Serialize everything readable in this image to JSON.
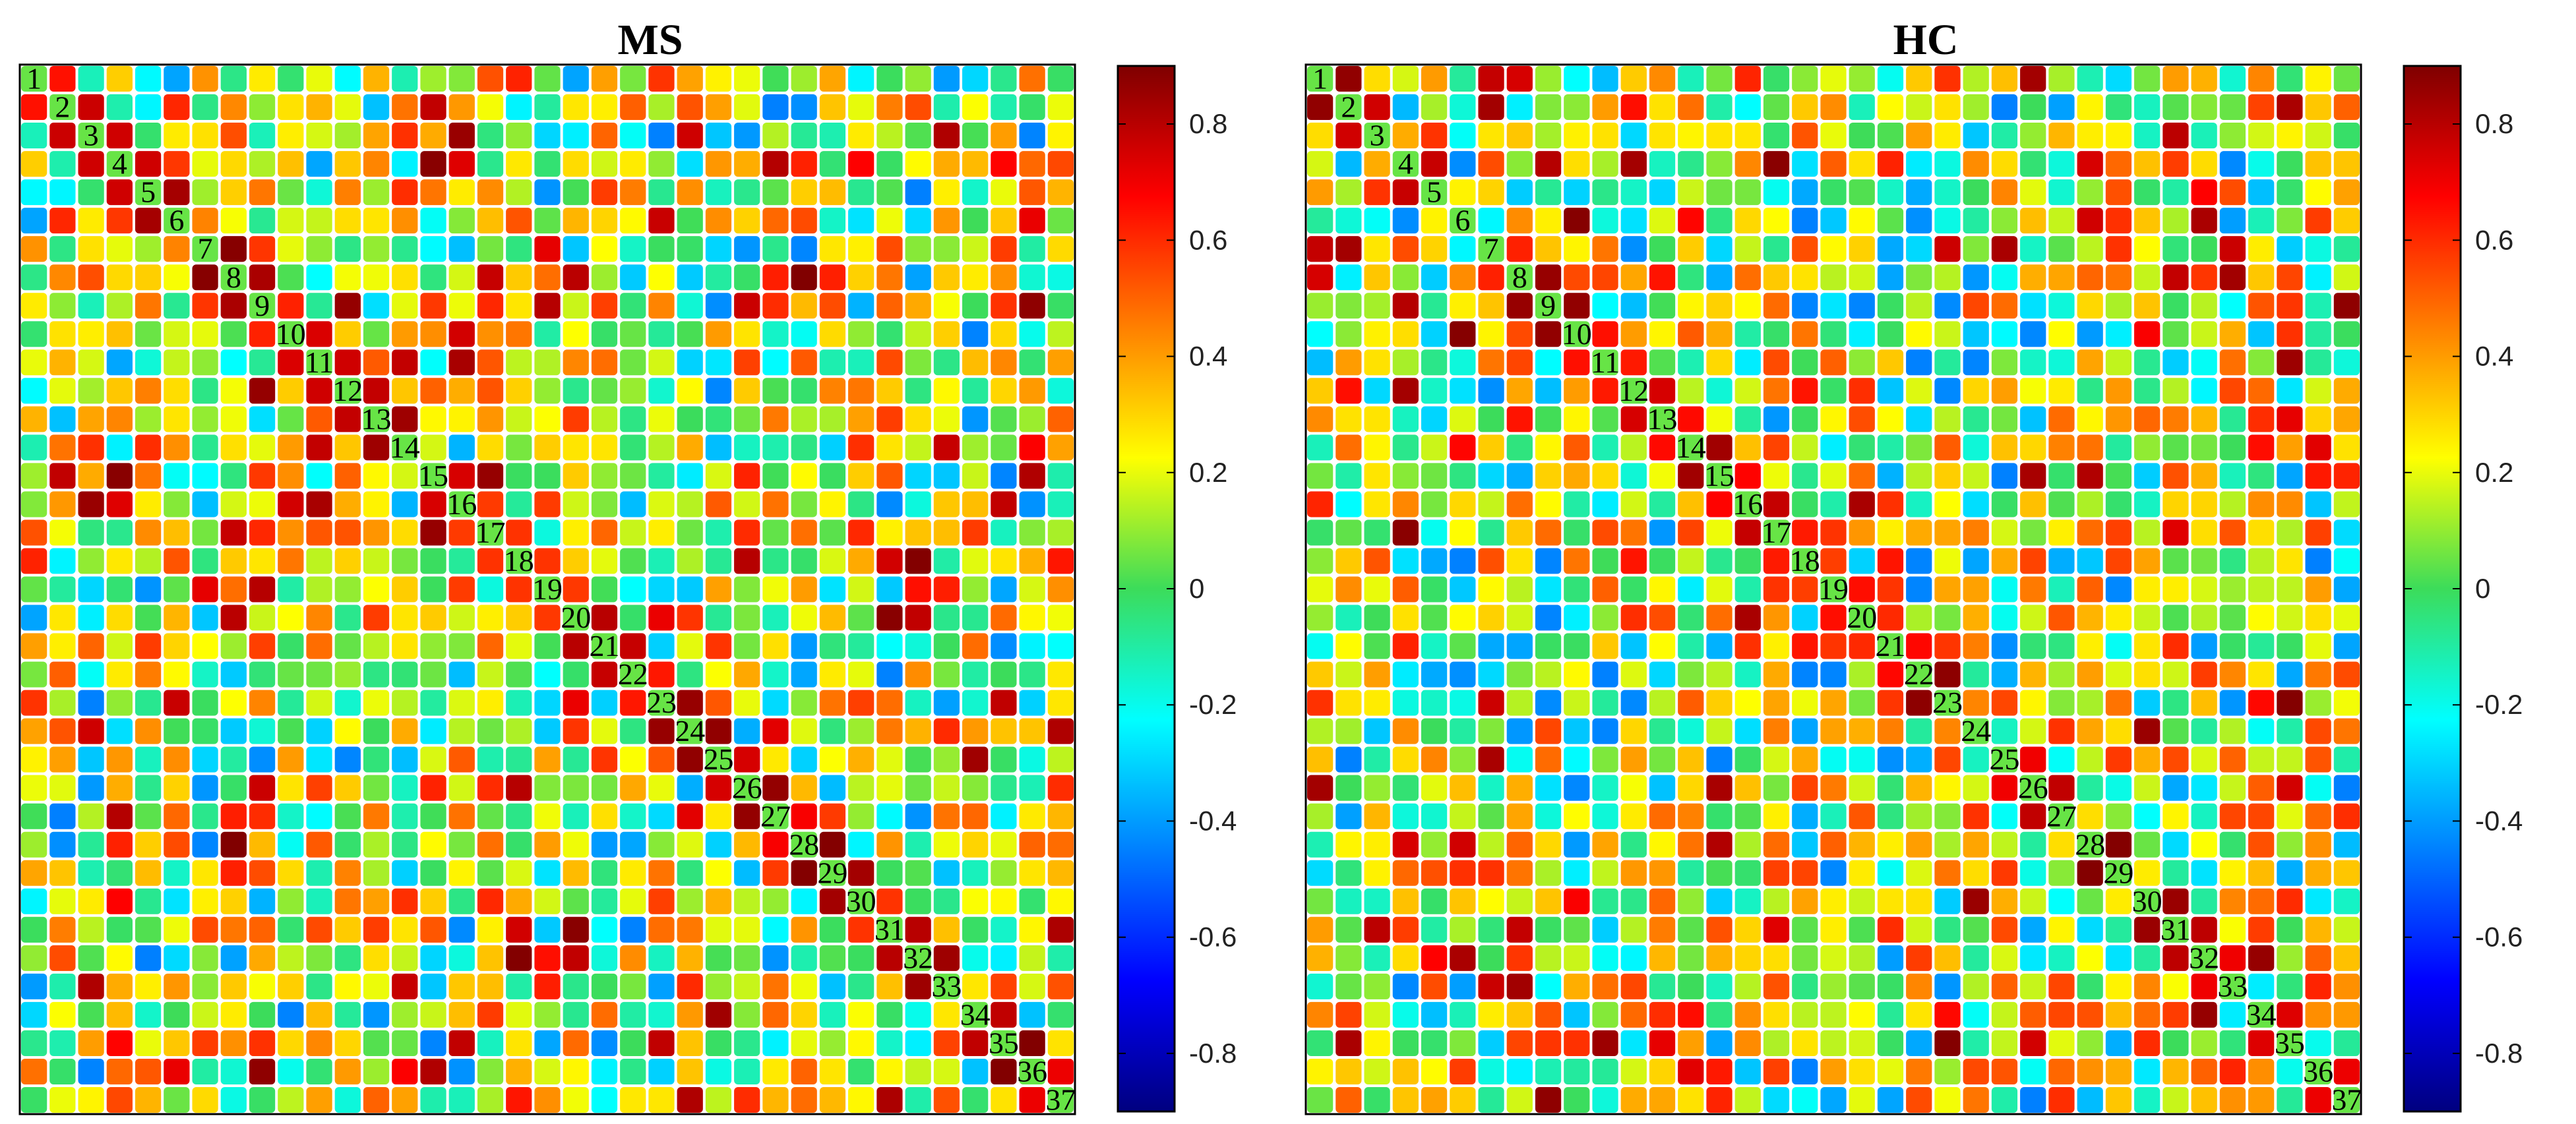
{
  "chart_data": [
    {
      "type": "heatmap",
      "title": "MS",
      "labels": [
        "1",
        "2",
        "3",
        "4",
        "5",
        "6",
        "7",
        "8",
        "9",
        "10",
        "11",
        "12",
        "13",
        "14",
        "15",
        "16",
        "17",
        "18",
        "19",
        "20",
        "21",
        "22",
        "23",
        "24",
        "25",
        "26",
        "27",
        "28",
        "29",
        "30",
        "31",
        "32",
        "33",
        "34",
        "35",
        "36",
        "37"
      ],
      "colorbar": {
        "range": [
          -0.9,
          0.9
        ],
        "ticks": [
          0.8,
          0.6,
          0.4,
          0.2,
          0,
          -0.2,
          -0.4,
          -0.6,
          -0.8
        ],
        "tick_labels": [
          "0.8",
          "0.6",
          "0.4",
          "0.2",
          "0",
          "-0.2",
          "-0.4",
          "-0.6",
          "-0.8"
        ],
        "colormap": "jet"
      },
      "matrix_summary": "37x37 symmetric correlation matrix; values mostly between -0.5 and 0.9, diagonal labelled by region index",
      "seed": 11
    },
    {
      "type": "heatmap",
      "title": "HC",
      "labels": [
        "1",
        "2",
        "3",
        "4",
        "5",
        "6",
        "7",
        "8",
        "9",
        "10",
        "11",
        "12",
        "13",
        "14",
        "15",
        "16",
        "17",
        "18",
        "19",
        "20",
        "21",
        "22",
        "23",
        "24",
        "25",
        "26",
        "27",
        "28",
        "29",
        "30",
        "31",
        "32",
        "33",
        "34",
        "35",
        "36",
        "37"
      ],
      "colorbar": {
        "range": [
          -0.9,
          0.9
        ],
        "ticks": [
          0.8,
          0.6,
          0.4,
          0.2,
          0,
          -0.2,
          -0.4,
          -0.6,
          -0.8
        ],
        "tick_labels": [
          "0.8",
          "0.6",
          "0.4",
          "0.2",
          "0",
          "-0.2",
          "-0.4",
          "-0.6",
          "-0.8"
        ],
        "colormap": "jet"
      },
      "matrix_summary": "37x37 symmetric correlation matrix; values mostly between -0.6 and 0.9, diagonal labelled by region index",
      "seed": 29
    }
  ]
}
